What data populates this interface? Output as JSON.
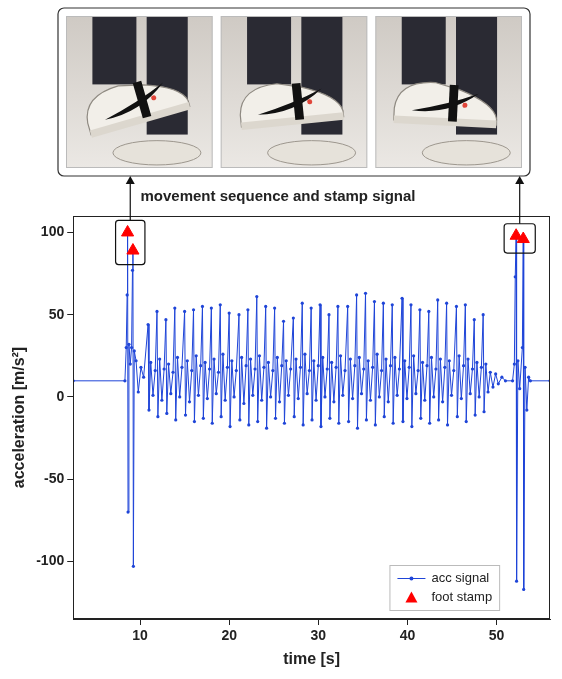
{
  "chart_data": {
    "type": "line",
    "title": "movement sequence and stamp signal",
    "x_label": "time [s]",
    "y_label": "acceleration [m/s²]",
    "xlim": [
      2.5,
      56
    ],
    "xticks": [
      10,
      20,
      30,
      40,
      50
    ],
    "ylim": [
      -135,
      110
    ],
    "yticks": [
      -100,
      -50,
      0,
      50,
      100
    ],
    "grid": false,
    "legend": "lower right",
    "series": [
      {
        "name": "acc signal",
        "type": "line",
        "color": "#1f45d8",
        "marker": "circle",
        "line_style": "solid",
        "x": [
          2.5,
          8.3,
          8.45,
          8.55,
          8.6,
          8.65,
          8.75,
          8.9,
          9.05,
          9.15,
          9.2,
          9.25,
          9.35,
          9.55,
          9.8,
          10.1,
          10.4,
          10.9,
          11.0,
          11.2,
          11.45,
          11.7,
          11.9,
          12.0,
          12.2,
          12.45,
          12.7,
          12.9,
          13.0,
          13.2,
          13.45,
          13.7,
          13.9,
          14.0,
          14.2,
          14.45,
          14.7,
          15.0,
          15.1,
          15.3,
          15.55,
          15.8,
          16.0,
          16.1,
          16.3,
          16.55,
          16.8,
          17.0,
          17.1,
          17.3,
          17.55,
          17.8,
          18.0,
          18.1,
          18.3,
          18.55,
          18.8,
          19.0,
          19.1,
          19.3,
          19.55,
          19.8,
          20.0,
          20.1,
          20.3,
          20.55,
          20.8,
          21.1,
          21.2,
          21.4,
          21.65,
          21.9,
          22.1,
          22.2,
          22.4,
          22.65,
          22.9,
          23.1,
          23.2,
          23.4,
          23.65,
          23.9,
          24.1,
          24.2,
          24.4,
          24.65,
          24.9,
          25.1,
          25.2,
          25.4,
          25.65,
          25.9,
          26.1,
          26.2,
          26.4,
          26.65,
          26.9,
          27.2,
          27.3,
          27.5,
          27.75,
          28.0,
          28.2,
          28.3,
          28.5,
          28.75,
          29.0,
          29.2,
          29.3,
          29.5,
          29.75,
          30.0,
          30.2,
          30.3,
          30.5,
          30.75,
          31.0,
          31.2,
          31.3,
          31.5,
          31.75,
          32.0,
          32.2,
          32.3,
          32.5,
          32.75,
          33.0,
          33.3,
          33.4,
          33.6,
          33.85,
          34.1,
          34.3,
          34.4,
          34.6,
          34.85,
          35.1,
          35.3,
          35.4,
          35.6,
          35.85,
          36.1,
          36.3,
          36.4,
          36.6,
          36.85,
          37.1,
          37.3,
          37.4,
          37.6,
          37.85,
          38.1,
          38.3,
          38.4,
          38.6,
          38.85,
          39.1,
          39.4,
          39.5,
          39.7,
          39.95,
          40.2,
          40.4,
          40.5,
          40.7,
          40.95,
          41.2,
          41.4,
          41.5,
          41.7,
          41.95,
          42.2,
          42.4,
          42.5,
          42.7,
          42.95,
          43.2,
          43.4,
          43.5,
          43.7,
          43.95,
          44.2,
          44.4,
          44.5,
          44.7,
          44.95,
          45.2,
          45.5,
          45.6,
          45.8,
          46.05,
          46.3,
          46.5,
          46.6,
          46.8,
          47.05,
          47.3,
          47.5,
          47.6,
          47.8,
          48.05,
          48.3,
          48.5,
          48.6,
          48.8,
          49.05,
          49.3,
          49.6,
          49.9,
          50.2,
          50.6,
          51.0,
          51.8,
          52.0,
          52.1,
          52.2,
          52.25,
          52.4,
          52.6,
          52.9,
          53.0,
          53.05,
          53.2,
          53.4,
          53.6,
          53.8,
          56
        ],
        "values": [
          9.8,
          9.8,
          30,
          62,
          100,
          -70,
          32,
          20,
          30,
          77,
          89,
          -103,
          28,
          22,
          3,
          18,
          12,
          44,
          -8,
          21,
          1,
          16,
          52,
          -12,
          23,
          -2,
          17,
          47,
          -10,
          20,
          2,
          15,
          54,
          -14,
          24,
          0,
          18,
          52,
          -11,
          22,
          -3,
          16,
          53,
          -15,
          25,
          1,
          19,
          55,
          -13,
          21,
          -1,
          17,
          54,
          -16,
          23,
          2,
          15,
          56,
          -12,
          26,
          -2,
          18,
          51,
          -18,
          22,
          0,
          16,
          50,
          -14,
          24,
          -4,
          19,
          53,
          -17,
          23,
          1,
          17,
          61,
          -15,
          25,
          -2,
          18,
          55,
          -19,
          21,
          0,
          16,
          54,
          -13,
          24,
          -3,
          19,
          46,
          -16,
          22,
          1,
          17,
          48,
          -12,
          23,
          -1,
          18,
          57,
          -17,
          26,
          2,
          16,
          54,
          -14,
          22,
          -2,
          19,
          56,
          -18,
          24,
          0,
          17,
          50,
          -13,
          21,
          -3,
          18,
          55,
          -16,
          25,
          1,
          16,
          55,
          -15,
          23,
          -1,
          19,
          62,
          -19,
          24,
          2,
          17,
          63,
          -14,
          22,
          -2,
          18,
          58,
          -17,
          26,
          0,
          16,
          57,
          -12,
          23,
          -3,
          19,
          56,
          -16,
          24,
          1,
          17,
          60,
          -15,
          22,
          -1,
          18,
          56,
          -18,
          25,
          2,
          16,
          53,
          -13,
          21,
          -2,
          19,
          52,
          -16,
          24,
          0,
          17,
          59,
          -14,
          23,
          -3,
          18,
          57,
          -17,
          22,
          1,
          16,
          55,
          -12,
          25,
          -1,
          19,
          56,
          -15,
          23,
          2,
          17,
          47,
          -11,
          21,
          0,
          18,
          50,
          -9,
          20,
          3,
          15,
          6,
          14,
          8,
          12,
          9.8,
          9.8,
          20,
          73,
          98,
          -112,
          22,
          5,
          30,
          96,
          -117,
          18,
          -8,
          12,
          9.8,
          9.8
        ]
      },
      {
        "name": "foot stamp",
        "type": "scatter",
        "color": "#ff0000",
        "marker": "triangle",
        "line_style": "none",
        "x": [
          8.6,
          9.2,
          52.2,
          53.0
        ],
        "values": [
          100,
          89,
          98,
          96
        ]
      }
    ]
  }
}
